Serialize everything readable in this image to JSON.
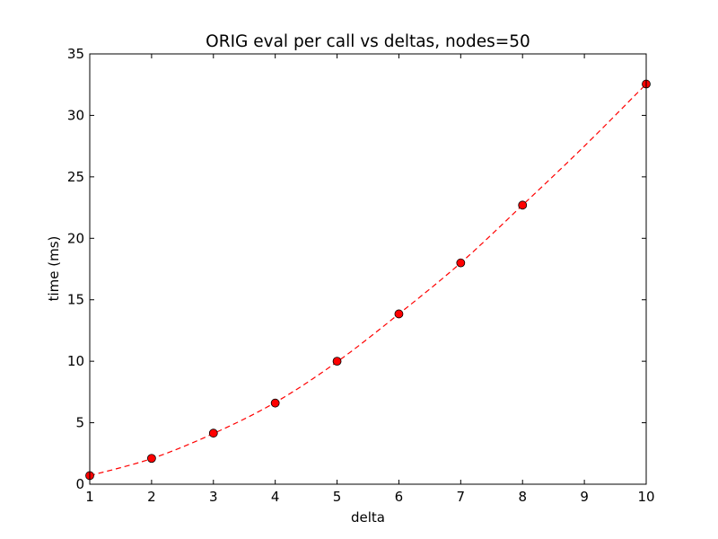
{
  "chart_data": {
    "type": "line",
    "title": "ORIG eval per call vs deltas, nodes=50",
    "xlabel": "delta",
    "ylabel": "time (ms)",
    "xlim": [
      1,
      10
    ],
    "ylim": [
      0,
      35
    ],
    "x_ticks": [
      1,
      2,
      3,
      4,
      5,
      6,
      7,
      8,
      9,
      10
    ],
    "y_ticks": [
      0,
      5,
      10,
      15,
      20,
      25,
      30,
      35
    ],
    "grid": false,
    "legend": "none",
    "x": [
      1,
      2,
      3,
      4,
      5,
      6,
      7,
      8,
      9,
      10
    ],
    "series": [
      {
        "values": [
          0.7,
          2.1,
          4.15,
          6.6,
          10.0,
          13.85,
          18.0,
          22.7,
          null,
          32.55
        ],
        "color": "#ff0000",
        "line_style": "dashed",
        "marker": "circle",
        "marker_edge_color": "#000000"
      }
    ],
    "fit_curve": {
      "x": [
        1,
        2,
        3,
        4,
        5,
        6,
        7,
        8,
        9,
        10
      ],
      "y": [
        0.7,
        2.08,
        4.12,
        6.65,
        9.95,
        13.85,
        18.0,
        22.7,
        27.5,
        32.55
      ],
      "color": "#ff0000",
      "line_style": "dashed"
    }
  }
}
